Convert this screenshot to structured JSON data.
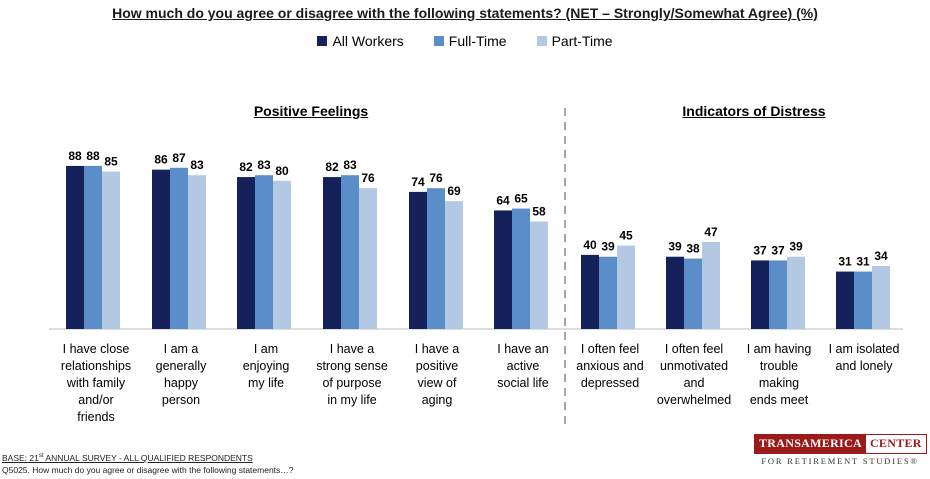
{
  "colors": {
    "all_workers": "#14215a",
    "full_time": "#5b8ec8",
    "part_time": "#b2c8e3"
  },
  "chart_data": {
    "type": "bar",
    "title": "How much do you agree or disagree with the following statements? (NET – Strongly/Somewhat Agree) (%)",
    "groups": [
      {
        "name": "Positive Feelings",
        "category_indices": [
          0,
          1,
          2,
          3,
          4,
          5
        ]
      },
      {
        "name": "Indicators of Distress",
        "category_indices": [
          6,
          7,
          8,
          9
        ]
      }
    ],
    "categories": [
      [
        "I have close",
        "relationships",
        "with family",
        "and/or",
        "friends"
      ],
      [
        "I am a",
        "generally",
        "happy",
        "person"
      ],
      [
        "I am",
        "enjoying",
        "my life"
      ],
      [
        "I have a",
        "strong sense",
        "of purpose",
        "in my life"
      ],
      [
        "I have a",
        "positive",
        "view of",
        "aging"
      ],
      [
        "I have an",
        "active",
        "social life"
      ],
      [
        "I often feel",
        "anxious and",
        "depressed"
      ],
      [
        "I often feel",
        "unmotivated",
        "and",
        "overwhelmed"
      ],
      [
        "I am having",
        "trouble",
        "making",
        "ends meet"
      ],
      [
        "I am isolated",
        "and lonely"
      ]
    ],
    "series": [
      {
        "name": "All Workers",
        "values": [
          88,
          86,
          82,
          82,
          74,
          64,
          40,
          39,
          37,
          31
        ]
      },
      {
        "name": "Full-Time",
        "values": [
          88,
          87,
          83,
          83,
          76,
          65,
          39,
          38,
          37,
          31
        ]
      },
      {
        "name": "Part-Time",
        "values": [
          85,
          83,
          80,
          76,
          69,
          58,
          45,
          47,
          39,
          34
        ]
      }
    ],
    "ylim": [
      0,
      100
    ],
    "grid": false,
    "legend_position": "top-center"
  },
  "footer": {
    "base_prefix": "BASE: 21",
    "base_sup": "st",
    "base_suffix": " ANNUAL SURVEY - ALL QUALIFIED RESPONDENTS",
    "question": "Q5025. How much do you agree or disagree with the following statements…?"
  },
  "logo": {
    "left": "TRANSAMERICA",
    "right": "CENTER",
    "sub": "FOR RETIREMENT STUDIES®"
  }
}
